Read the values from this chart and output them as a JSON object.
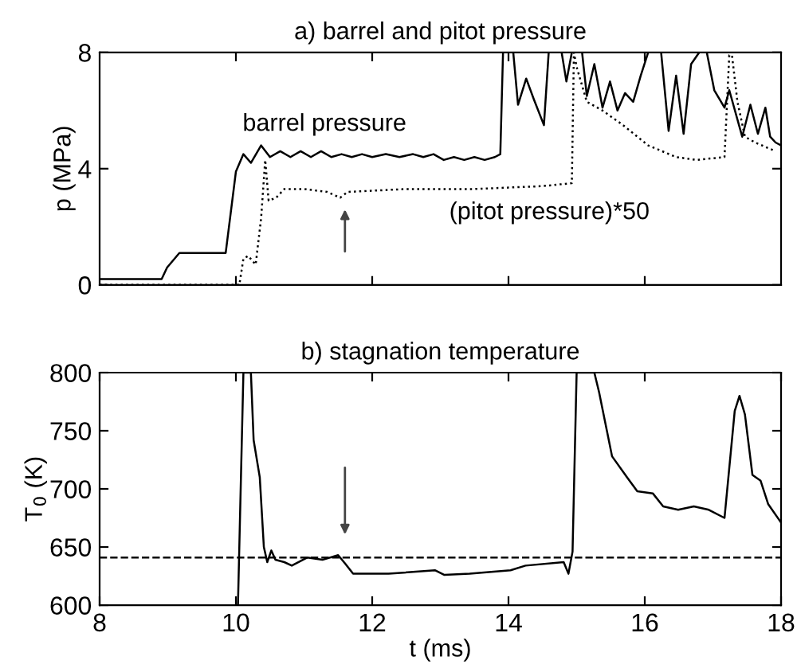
{
  "chart_data": [
    {
      "type": "line",
      "title": "a) barrel and pitot pressure",
      "ylabel": "p (MPa)",
      "xlim": [
        8,
        18
      ],
      "xticks": [
        10,
        12,
        14,
        16
      ],
      "ylim": [
        0,
        8
      ],
      "yticks": [
        0,
        4,
        8
      ],
      "tick_labels": "y",
      "grid": false,
      "legend": false,
      "series": [
        {
          "name": "barrel pressure",
          "color": "#000000",
          "line_style": "solid",
          "x": [
            8,
            8.91,
            8.99,
            9.17,
            9.85,
            10.0,
            10.11,
            10.22,
            10.37,
            10.5,
            10.65,
            10.8,
            10.95,
            11.1,
            11.25,
            11.4,
            11.55,
            11.7,
            11.85,
            12.0,
            12.2,
            12.4,
            12.6,
            12.75,
            12.9,
            13.05,
            13.2,
            13.35,
            13.5,
            13.65,
            13.8,
            13.88,
            13.92,
            14.07,
            14.14,
            14.26,
            14.37,
            14.52,
            14.59,
            14.78,
            14.85,
            14.93,
            15.08,
            15.15,
            15.26,
            15.38,
            15.49,
            15.6,
            15.71,
            15.83,
            15.94,
            16.05,
            16.16,
            16.24,
            16.35,
            16.46,
            16.57,
            16.68,
            16.8,
            16.91,
            17.02,
            17.17,
            17.24,
            17.43,
            17.55,
            17.66,
            17.77,
            17.84,
            17.92,
            18.0
          ],
          "values": [
            0.2,
            0.2,
            0.6,
            1.1,
            1.1,
            3.9,
            4.5,
            4.2,
            4.8,
            4.4,
            4.6,
            4.4,
            4.6,
            4.4,
            4.6,
            4.4,
            4.5,
            4.4,
            4.5,
            4.4,
            4.5,
            4.4,
            4.5,
            4.4,
            4.5,
            4.3,
            4.4,
            4.3,
            4.4,
            4.3,
            4.4,
            4.5,
            8,
            8,
            6.2,
            7.1,
            6.4,
            5.5,
            8,
            8,
            7.0,
            8,
            8,
            6.5,
            7.6,
            6.1,
            7.0,
            6.0,
            6.6,
            6.3,
            7.2,
            8,
            8,
            8,
            5.3,
            7.2,
            5.2,
            7.6,
            8,
            8,
            6.7,
            6.1,
            6.7,
            5.1,
            6.2,
            5.2,
            6.1,
            5.1,
            4.9,
            4.8
          ]
        },
        {
          "name": "(pitot pressure)*50",
          "color": "#000000",
          "line_style": "dotted",
          "x": [
            8,
            10.05,
            10.11,
            10.18,
            10.29,
            10.37,
            10.43,
            10.48,
            10.59,
            10.71,
            11.0,
            11.34,
            11.53,
            11.64,
            12.5,
            13.5,
            14.5,
            14.93,
            14.96,
            15.0,
            15.15,
            15.38,
            15.68,
            16.05,
            16.46,
            16.76,
            17.17,
            17.24,
            17.28,
            17.36,
            17.47,
            17.62,
            17.92
          ],
          "values": [
            0,
            0,
            0.9,
            1.0,
            0.7,
            2.3,
            4.3,
            2.9,
            3.0,
            3.3,
            3.3,
            3.2,
            3.0,
            3.2,
            3.3,
            3.3,
            3.4,
            3.5,
            8,
            7.5,
            6.3,
            6.0,
            5.5,
            4.8,
            4.4,
            4.3,
            4.4,
            7.9,
            7.9,
            6.3,
            5.1,
            4.9,
            4.6
          ]
        }
      ]
    },
    {
      "type": "line",
      "title": "b) stagnation temperature",
      "xlabel": "t (ms)",
      "ylabel": "T$_{0}$ (K)",
      "xlim": [
        8,
        18
      ],
      "xticks": [
        8,
        10,
        12,
        14,
        16,
        18
      ],
      "ylim": [
        600,
        800
      ],
      "yticks": [
        600,
        650,
        700,
        750,
        800
      ],
      "grid": false,
      "legend": false,
      "ref_lines": [
        {
          "axis": "y",
          "value": 641,
          "line_style": "dashed",
          "color": "#000000"
        }
      ],
      "series": [
        {
          "color": "#000000",
          "line_style": "solid",
          "x": [
            10.03,
            10.11,
            10.22,
            10.26,
            10.35,
            10.41,
            10.46,
            10.52,
            10.58,
            10.71,
            10.82,
            11.05,
            11.27,
            11.5,
            11.6,
            11.72,
            12.24,
            12.92,
            13.06,
            13.43,
            14.03,
            14.25,
            14.81,
            14.88,
            14.94,
            15.0,
            15.26,
            15.33,
            15.52,
            15.74,
            15.89,
            16.12,
            16.27,
            16.49,
            16.72,
            16.94,
            17.17,
            17.32,
            17.39,
            17.47,
            17.58,
            17.7,
            17.81,
            18.0
          ],
          "values": [
            600,
            800,
            800,
            742,
            710,
            650,
            637,
            647,
            639,
            637,
            634,
            641,
            639,
            643,
            636,
            627,
            627,
            630,
            626,
            627,
            630,
            634,
            637,
            627,
            646,
            800,
            800,
            783,
            728,
            710,
            698,
            696,
            685,
            682,
            685,
            682,
            675,
            767,
            780,
            764,
            712,
            707,
            687,
            671
          ]
        }
      ]
    }
  ]
}
